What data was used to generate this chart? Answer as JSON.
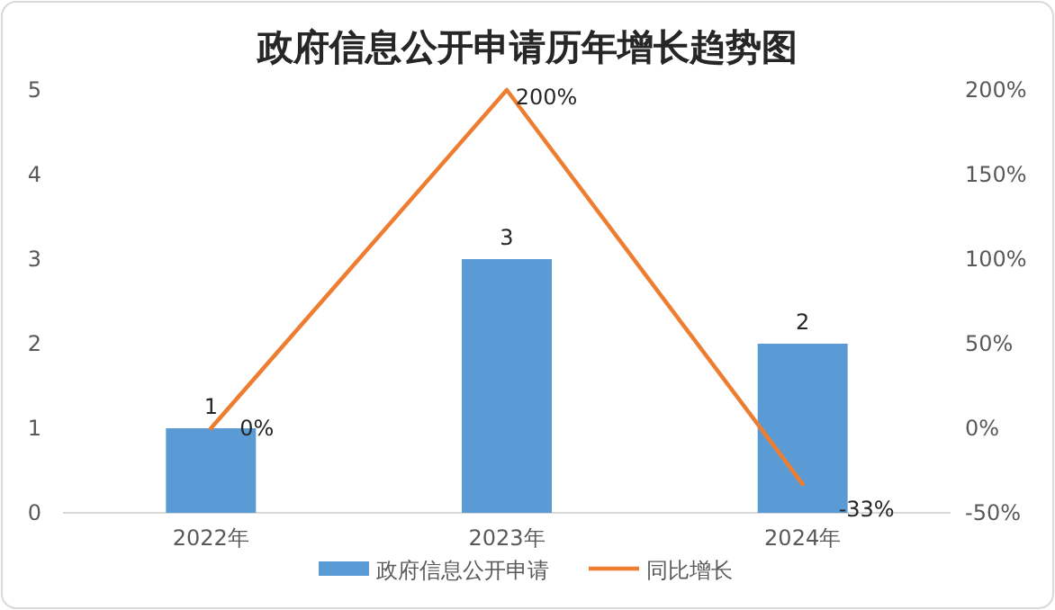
{
  "chart_data": {
    "type": "bar",
    "title": "政府信息公开申请历年增长趋势图",
    "categories": [
      "2022年",
      "2023年",
      "2024年"
    ],
    "series": [
      {
        "name": "政府信息公开申请",
        "color": "#5b9bd5",
        "values": [
          1,
          3,
          2
        ],
        "value_labels": [
          "1",
          "3",
          "2"
        ]
      },
      {
        "name": "同比增长",
        "type": "line",
        "axis": "y2",
        "color": "#ed7d31",
        "values": [
          0,
          200,
          -33
        ],
        "value_labels": [
          "0%",
          "200%",
          "-33%"
        ],
        "marker": "none"
      }
    ],
    "ylim": [
      0,
      5
    ],
    "yticks": [
      0,
      1,
      2,
      3,
      4,
      5
    ],
    "y2lim": [
      -50,
      200
    ],
    "y2ticks": [
      {
        "value": -50,
        "label": "-50%"
      },
      {
        "value": 0,
        "label": "0%"
      },
      {
        "value": 50,
        "label": "50%"
      },
      {
        "value": 100,
        "label": "100%"
      },
      {
        "value": 150,
        "label": "150%"
      },
      {
        "value": 200,
        "label": "200%"
      }
    ],
    "legend": "bottom"
  }
}
